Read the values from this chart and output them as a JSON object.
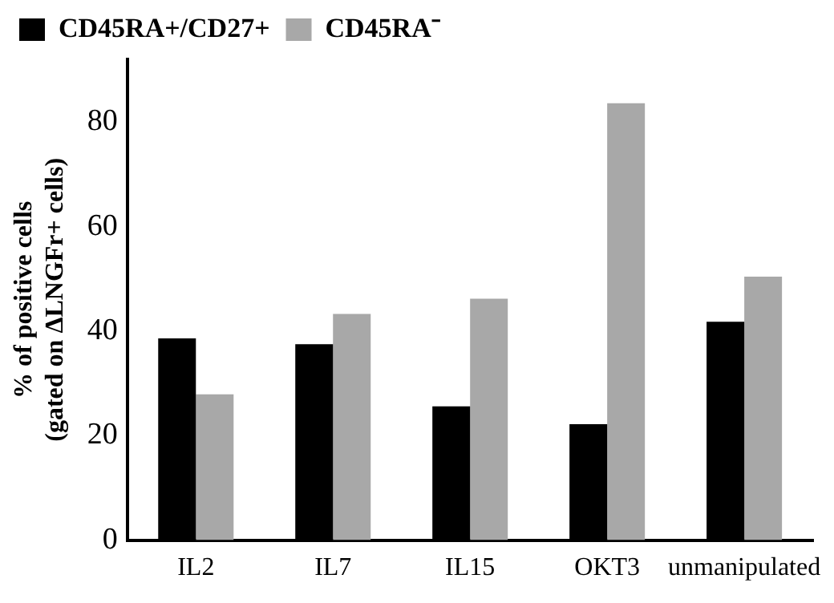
{
  "chart_data": {
    "type": "bar",
    "ylabel": "% of positive cells\n(gated on ΔLNGFr+ cells)",
    "categories": [
      "IL2",
      "IL7",
      "IL15",
      "OKT3",
      "unmanipulated"
    ],
    "series": [
      {
        "name": "CD45RA+/CD27+",
        "color": "#000000",
        "values": [
          38.6,
          37.5,
          25.6,
          22.2,
          41.8
        ]
      },
      {
        "name": "CD45RA⁻",
        "color": "#a8a8a8",
        "values": [
          27.9,
          43.3,
          46.2,
          83.6,
          50.4
        ]
      }
    ],
    "ylim": [
      0,
      92
    ],
    "yticks": [
      0,
      20,
      40,
      60,
      80
    ],
    "grid": false,
    "legend": "top left"
  }
}
